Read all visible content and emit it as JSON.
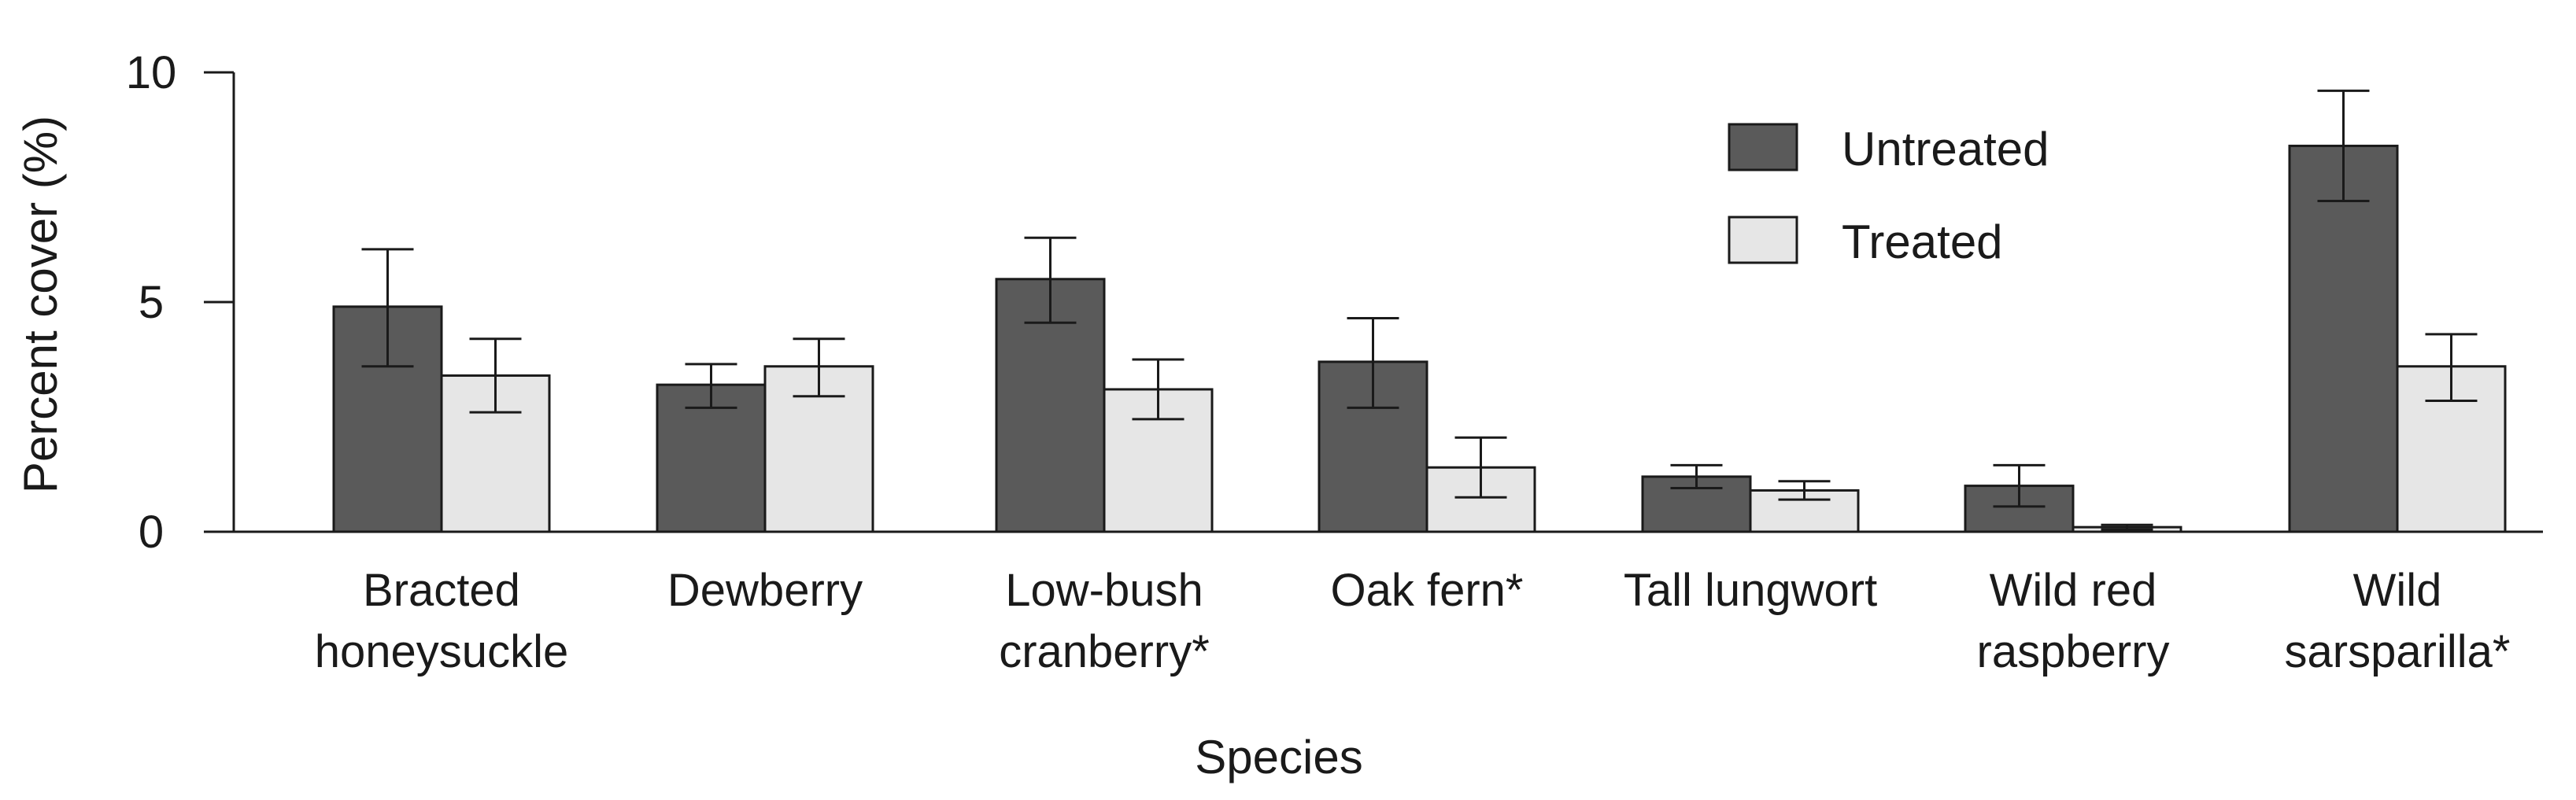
{
  "chart_data": {
    "type": "bar",
    "title": "",
    "xlabel": "Species",
    "ylabel": "Percent cover (%)",
    "ylim": [
      0,
      10
    ],
    "yticks": [
      0,
      5,
      10
    ],
    "legend_position": "top-right",
    "categories": [
      [
        "Bracted",
        "honeysuckle"
      ],
      [
        "Dewberry"
      ],
      [
        "Low-bush",
        "cranberry*"
      ],
      [
        "Oak fern*"
      ],
      [
        "Tall lungwort"
      ],
      [
        "Wild red",
        "raspberry"
      ],
      [
        "Wild",
        "sarsparilla*"
      ]
    ],
    "series": [
      {
        "name": "Untreated",
        "color": "#5a5a5a",
        "values": [
          4.9,
          3.2,
          5.5,
          3.7,
          1.2,
          1.0,
          8.4
        ],
        "error_low": [
          3.6,
          2.7,
          4.55,
          2.7,
          0.95,
          0.55,
          7.2
        ],
        "error_high": [
          6.15,
          3.65,
          6.4,
          4.65,
          1.45,
          1.45,
          9.6
        ]
      },
      {
        "name": "Treated",
        "color": "#e6e6e6",
        "values": [
          3.4,
          3.6,
          3.1,
          1.4,
          0.9,
          0.1,
          3.6
        ],
        "error_low": [
          2.6,
          2.95,
          2.45,
          0.75,
          0.7,
          0.05,
          2.85
        ],
        "error_high": [
          4.2,
          4.2,
          3.75,
          2.05,
          1.1,
          0.15,
          4.3
        ]
      }
    ]
  }
}
